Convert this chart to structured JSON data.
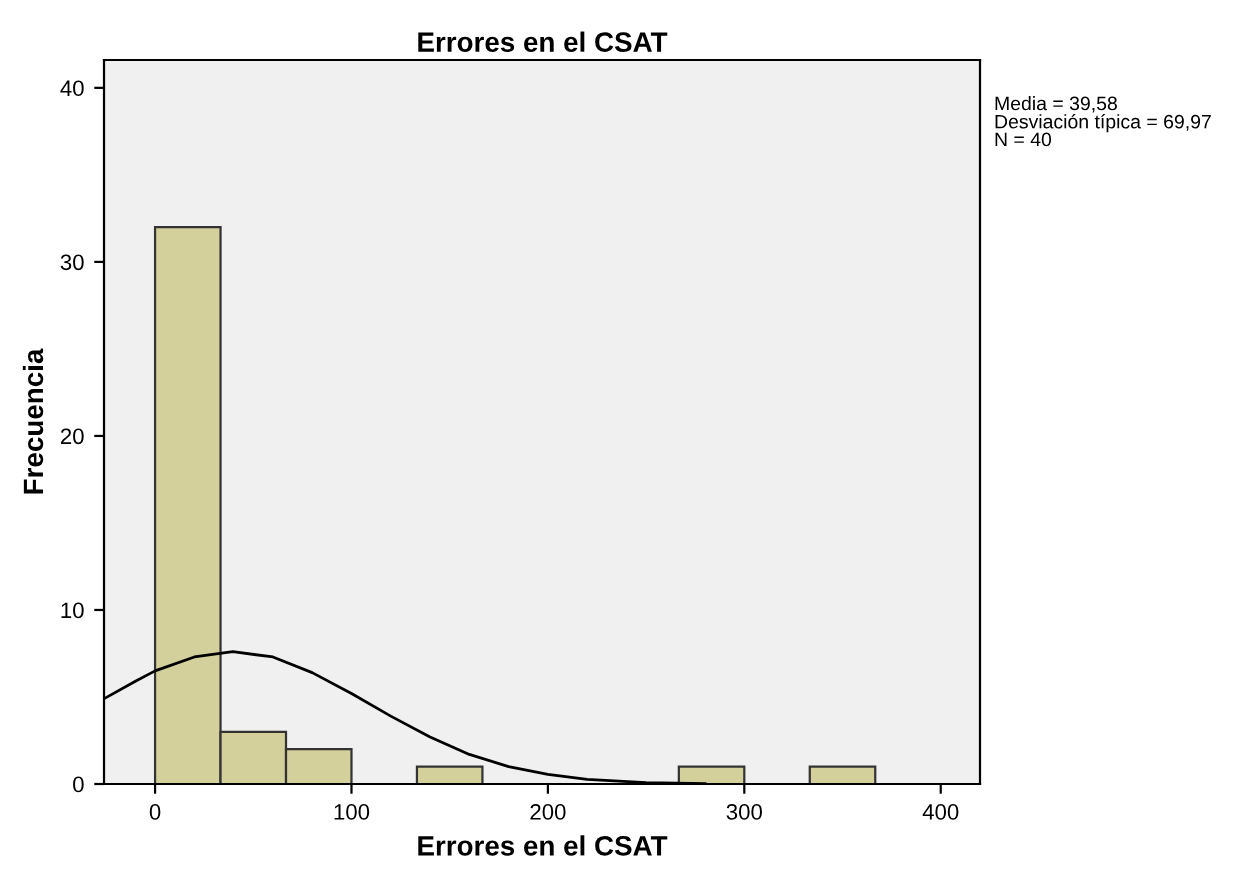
{
  "chart_data": {
    "type": "histogram",
    "title": "Errores en el CSAT",
    "xlabel": "Errores en el CSAT",
    "ylabel": "Frecuencia",
    "bins": [
      0,
      33.33,
      66.67,
      100,
      133.33,
      166.67,
      200,
      233.33,
      266.67,
      300,
      333.33,
      366.67
    ],
    "values": [
      32,
      3,
      2,
      0,
      1,
      0,
      0,
      0,
      1,
      0,
      1
    ],
    "color": "#d4d09c",
    "series": [
      {
        "type": "line",
        "color": "#000000",
        "x": [
          -26,
          -10,
          0,
          20,
          39.58,
          60,
          80,
          100,
          120,
          140,
          160,
          180,
          200,
          220,
          250,
          280
        ],
        "values": [
          4.9,
          5.9,
          6.5,
          7.3,
          7.6,
          7.3,
          6.4,
          5.2,
          3.9,
          2.7,
          1.7,
          1.0,
          0.55,
          0.27,
          0.08,
          0.02
        ]
      }
    ],
    "xlim": [
      -26,
      420
    ],
    "ylim": [
      0,
      41.6
    ],
    "xticks": [
      0,
      100,
      200,
      300,
      400
    ],
    "yticks": [
      0,
      10,
      20,
      30,
      40
    ],
    "grid": false,
    "legend": false,
    "annotations": [
      "Media = 39,58",
      "Desviación típica = 69,97",
      "N = 40"
    ]
  }
}
